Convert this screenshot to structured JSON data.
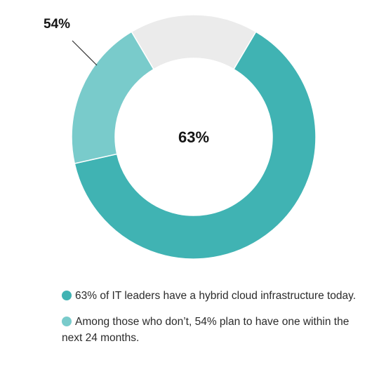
{
  "chart_data": {
    "type": "pie",
    "style": "donut",
    "center_label": "63%",
    "callout_label": "54%",
    "segments": [
      {
        "name": "hybrid cloud today",
        "value": 63,
        "color": "#40b3b3"
      },
      {
        "name": "plan within 24 months",
        "value": 20,
        "color": "#79cbcb"
      },
      {
        "name": "remaining",
        "value": 17,
        "color": "#ebebeb"
      }
    ],
    "legend": [
      {
        "text": "63% of IT leaders have a hybrid cloud infrastructure today.",
        "color": "#40b3b3"
      },
      {
        "text": "Among those who don’t, 54% plan to have one within the next 24 months.",
        "color": "#79cbcb"
      }
    ]
  }
}
